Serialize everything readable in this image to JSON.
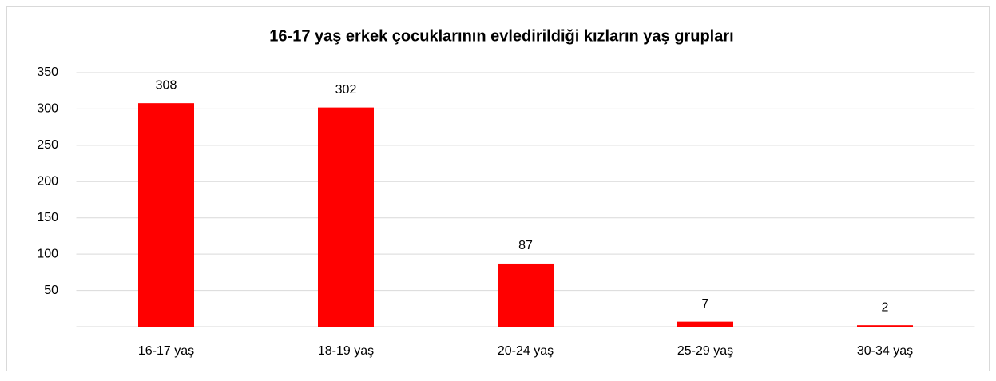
{
  "chart_data": {
    "type": "bar",
    "title": "16-17 yaş erkek çocuklarının evledirildiği kızların yaş grupları",
    "categories": [
      "16-17 yaş",
      "18-19 yaş",
      "20-24 yaş",
      "25-29 yaş",
      "30-34 yaş"
    ],
    "values": [
      308,
      302,
      87,
      7,
      2
    ],
    "color": "#ff0000",
    "ylim": [
      0,
      350
    ],
    "yticks": [
      50,
      100,
      150,
      200,
      250,
      300,
      350
    ],
    "grid": true,
    "data_labels": true
  }
}
